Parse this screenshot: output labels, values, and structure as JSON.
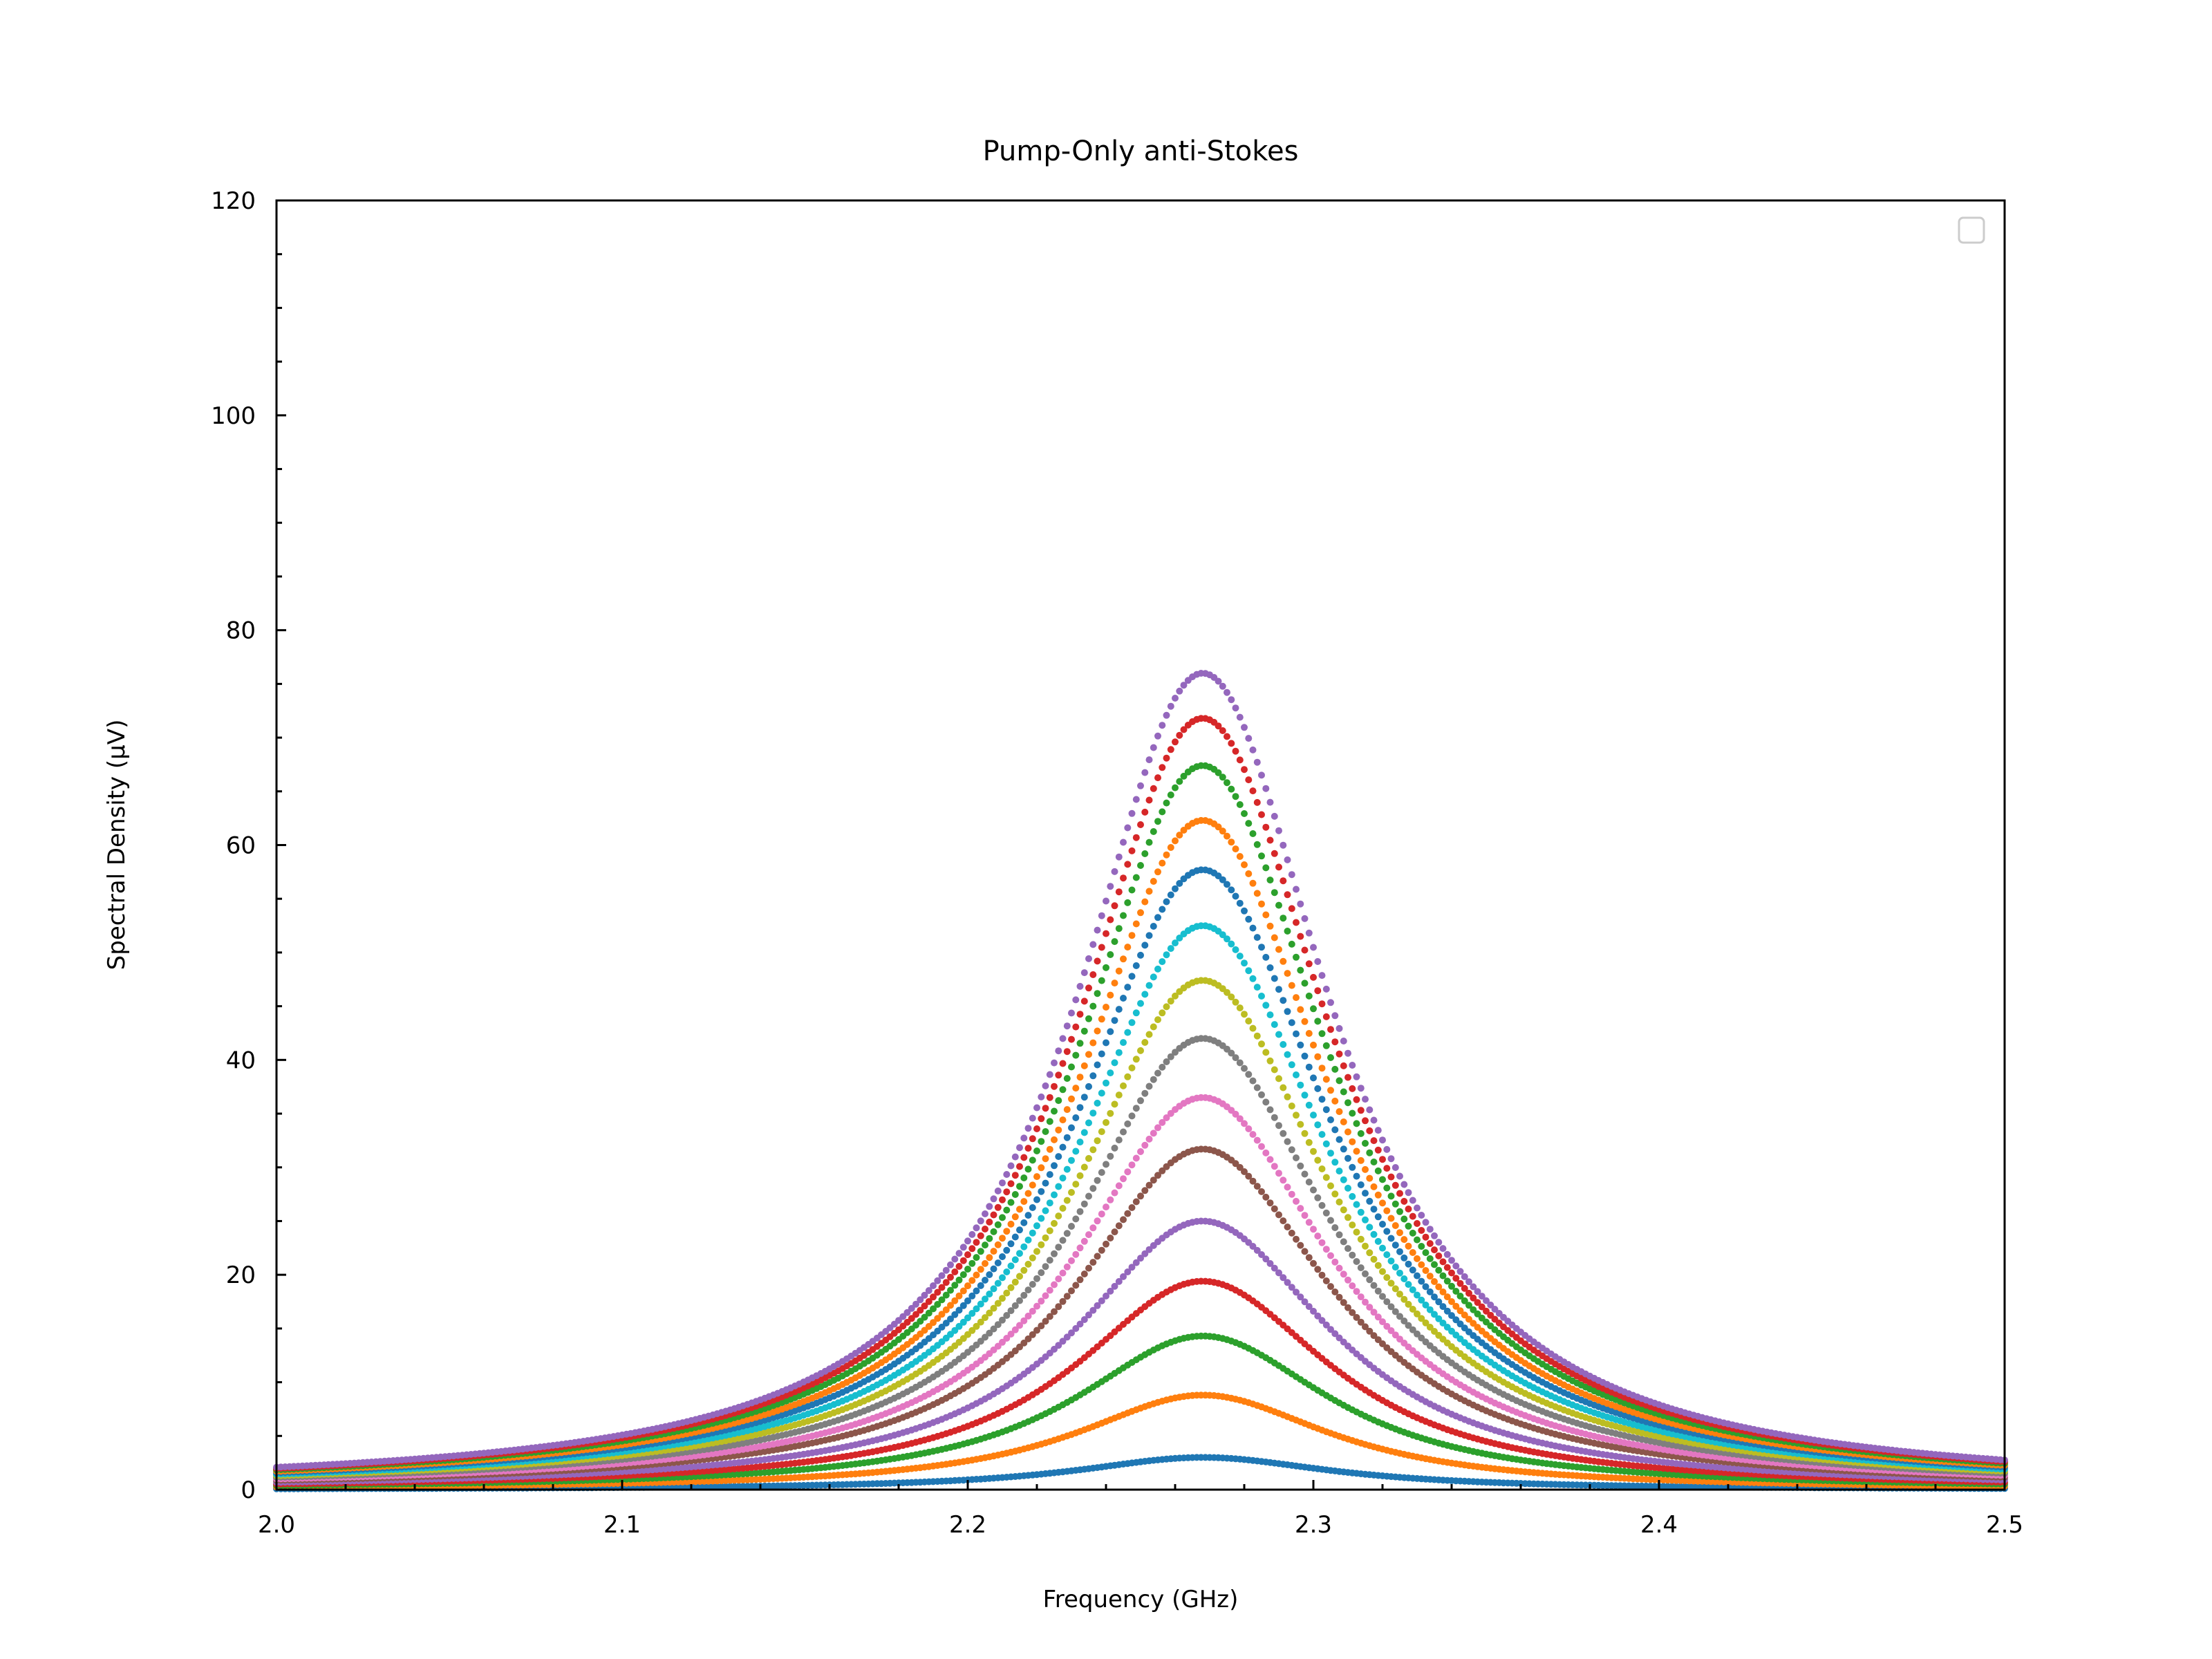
{
  "chart_data": {
    "type": "scatter",
    "title": "Pump-Only anti-Stokes",
    "xlabel": "Frequency (GHz)",
    "ylabel": "Spectral Density (μV)",
    "xlim": [
      2.0,
      2.5
    ],
    "ylim": [
      0,
      120
    ],
    "x_ticks": [
      "2.0",
      "2.1",
      "2.2",
      "2.3",
      "2.4",
      "2.5"
    ],
    "y_ticks": [
      "0",
      "20",
      "40",
      "60",
      "80",
      "100",
      "120"
    ],
    "grid": false,
    "legend": "top-right (empty)",
    "series_model": "Lorentzian peak, center 2.268 GHz, half-width ~0.045 GHz",
    "center_ghz": 2.268,
    "hwhm_ghz": 0.045,
    "series": [
      {
        "peak": 3.0,
        "color": "#1f77b4"
      },
      {
        "peak": 8.8,
        "color": "#ff7f0e"
      },
      {
        "peak": 14.3,
        "color": "#2ca02c"
      },
      {
        "peak": 19.4,
        "color": "#d62728"
      },
      {
        "peak": 25.0,
        "color": "#9467bd"
      },
      {
        "peak": 31.7,
        "color": "#8c564b"
      },
      {
        "peak": 36.5,
        "color": "#e377c2"
      },
      {
        "peak": 42.0,
        "color": "#7f7f7f"
      },
      {
        "peak": 47.4,
        "color": "#bcbd22"
      },
      {
        "peak": 52.5,
        "color": "#17becf"
      },
      {
        "peak": 57.7,
        "color": "#1f77b4"
      },
      {
        "peak": 62.3,
        "color": "#ff7f0e"
      },
      {
        "peak": 67.4,
        "color": "#2ca02c"
      },
      {
        "peak": 71.8,
        "color": "#d62728"
      },
      {
        "peak": 76.0,
        "color": "#9467bd"
      }
    ]
  }
}
